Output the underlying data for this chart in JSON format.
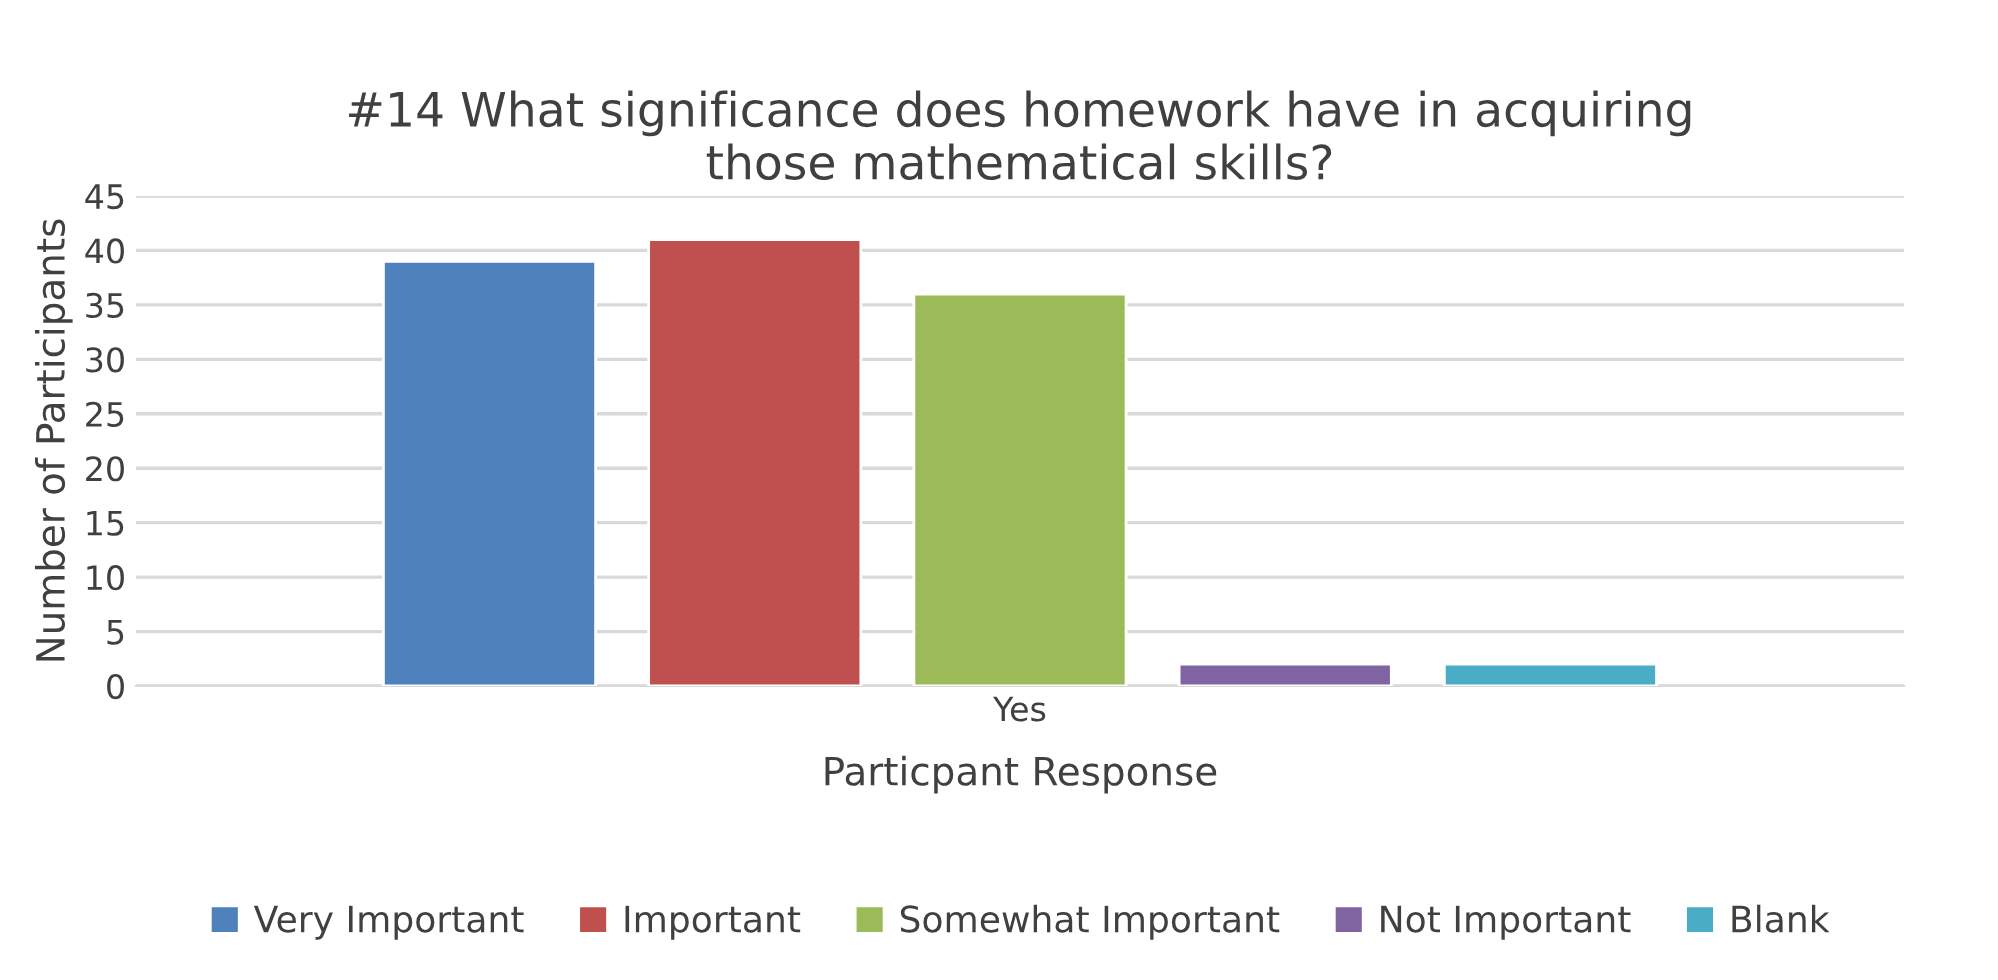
{
  "chart_data": {
    "type": "bar",
    "title": "#14 What significance does homework have in acquiring\nthose mathematical skills?",
    "xlabel": "Particpant Response",
    "ylabel": "Number of Participants",
    "categories": [
      "Yes"
    ],
    "series": [
      {
        "name": "Very Important",
        "color": "#4f81bd",
        "values": [
          39
        ]
      },
      {
        "name": "Important",
        "color": "#c0504d",
        "values": [
          41
        ]
      },
      {
        "name": "Somewhat Important",
        "color": "#9bbb59",
        "values": [
          36
        ]
      },
      {
        "name": "Not Important",
        "color": "#8064a2",
        "values": [
          2
        ]
      },
      {
        "name": "Blank",
        "color": "#4bacc6",
        "values": [
          2
        ]
      }
    ],
    "ylim": [
      0,
      45
    ],
    "yticks": [
      0,
      5,
      10,
      15,
      20,
      25,
      30,
      35,
      40,
      45
    ],
    "grid": "y",
    "legend": "bottom"
  }
}
